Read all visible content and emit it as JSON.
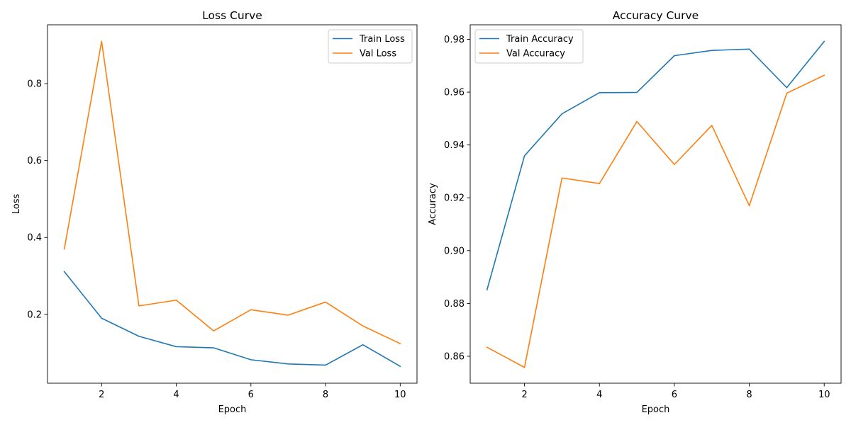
{
  "chart_data": [
    {
      "type": "line",
      "title": "Loss Curve",
      "xlabel": "Epoch",
      "ylabel": "Loss",
      "x": [
        1,
        2,
        3,
        4,
        5,
        6,
        7,
        8,
        9,
        10
      ],
      "xlim": [
        0.55,
        10.45
      ],
      "ylim": [
        0.021,
        0.953
      ],
      "xticks": [
        2,
        4,
        6,
        8,
        10
      ],
      "yticks": [
        0.2,
        0.4,
        0.6,
        0.8
      ],
      "x_tick_labels": [
        "2",
        "4",
        "6",
        "8",
        "10"
      ],
      "y_tick_labels": [
        "0.2",
        "0.4",
        "0.6",
        "0.8"
      ],
      "legend": "upper right",
      "grid": false,
      "series": [
        {
          "name": "Train Loss",
          "color": "#1f77b4",
          "values": [
            0.311,
            0.19,
            0.143,
            0.116,
            0.113,
            0.082,
            0.071,
            0.068,
            0.121,
            0.065
          ]
        },
        {
          "name": "Val Loss",
          "color": "#ff7f0e",
          "values": [
            0.37,
            0.91,
            0.222,
            0.237,
            0.157,
            0.212,
            0.198,
            0.232,
            0.17,
            0.124
          ]
        }
      ]
    },
    {
      "type": "line",
      "title": "Accuracy Curve",
      "xlabel": "Epoch",
      "ylabel": "Accuracy",
      "x": [
        1,
        2,
        3,
        4,
        5,
        6,
        7,
        8,
        9,
        10
      ],
      "xlim": [
        0.55,
        10.45
      ],
      "ylim": [
        0.8498,
        0.9855
      ],
      "xticks": [
        2,
        4,
        6,
        8,
        10
      ],
      "yticks": [
        0.86,
        0.88,
        0.9,
        0.92,
        0.94,
        0.96,
        0.98
      ],
      "x_tick_labels": [
        "2",
        "4",
        "6",
        "8",
        "10"
      ],
      "y_tick_labels": [
        "0.86",
        "0.88",
        "0.90",
        "0.92",
        "0.94",
        "0.96",
        "0.98"
      ],
      "legend": "upper left",
      "grid": false,
      "series": [
        {
          "name": "Train Accuracy",
          "color": "#1f77b4",
          "values": [
            0.8852,
            0.9359,
            0.9518,
            0.9598,
            0.9599,
            0.9738,
            0.9758,
            0.9763,
            0.9617,
            0.9792
          ]
        },
        {
          "name": "Val Accuracy",
          "color": "#ff7f0e",
          "values": [
            0.8634,
            0.8558,
            0.9275,
            0.9254,
            0.9489,
            0.9326,
            0.9474,
            0.917,
            0.9596,
            0.9664
          ]
        }
      ]
    }
  ]
}
